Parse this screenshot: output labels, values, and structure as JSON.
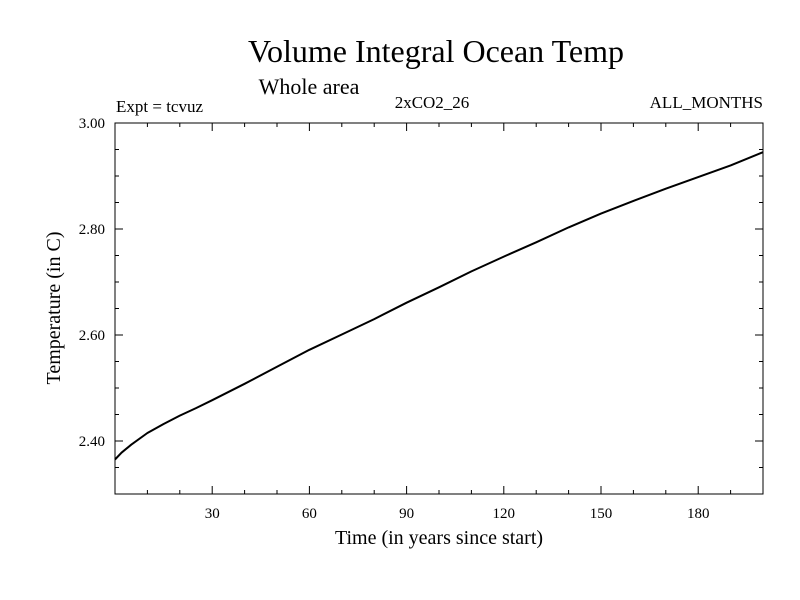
{
  "chart_data": {
    "type": "line",
    "title": "Volume Integral Ocean Temp",
    "subtitle": "Whole area",
    "expt_label": "Expt = tcvuz",
    "run_label": "2xCO2_26",
    "months_label": "ALL_MONTHS",
    "xlabel": "Time (in years since start)",
    "ylabel": "Temperature (in C)",
    "xlim": [
      0,
      200
    ],
    "ylim": [
      2.3,
      3.0
    ],
    "xticks": [
      30,
      60,
      90,
      120,
      150,
      180
    ],
    "xtick_labels": [
      "30",
      "60",
      "90",
      "120",
      "150",
      "180"
    ],
    "xminor_step": 10,
    "yticks": [
      2.4,
      2.6,
      2.8,
      3.0
    ],
    "ytick_labels": [
      "2.40",
      "2.60",
      "2.80",
      "3.00"
    ],
    "yminor_step": 0.05,
    "grid": false,
    "line_color": "#000000",
    "series": [
      {
        "x": [
          0,
          2,
          5,
          10,
          15,
          20,
          25,
          30,
          40,
          50,
          60,
          70,
          80,
          90,
          100,
          110,
          120,
          130,
          140,
          150,
          160,
          170,
          180,
          190,
          200
        ],
        "y": [
          2.365,
          2.378,
          2.393,
          2.415,
          2.432,
          2.448,
          2.462,
          2.477,
          2.508,
          2.54,
          2.572,
          2.601,
          2.63,
          2.661,
          2.69,
          2.72,
          2.748,
          2.775,
          2.803,
          2.829,
          2.853,
          2.876,
          2.898,
          2.92,
          2.945
        ]
      }
    ]
  }
}
